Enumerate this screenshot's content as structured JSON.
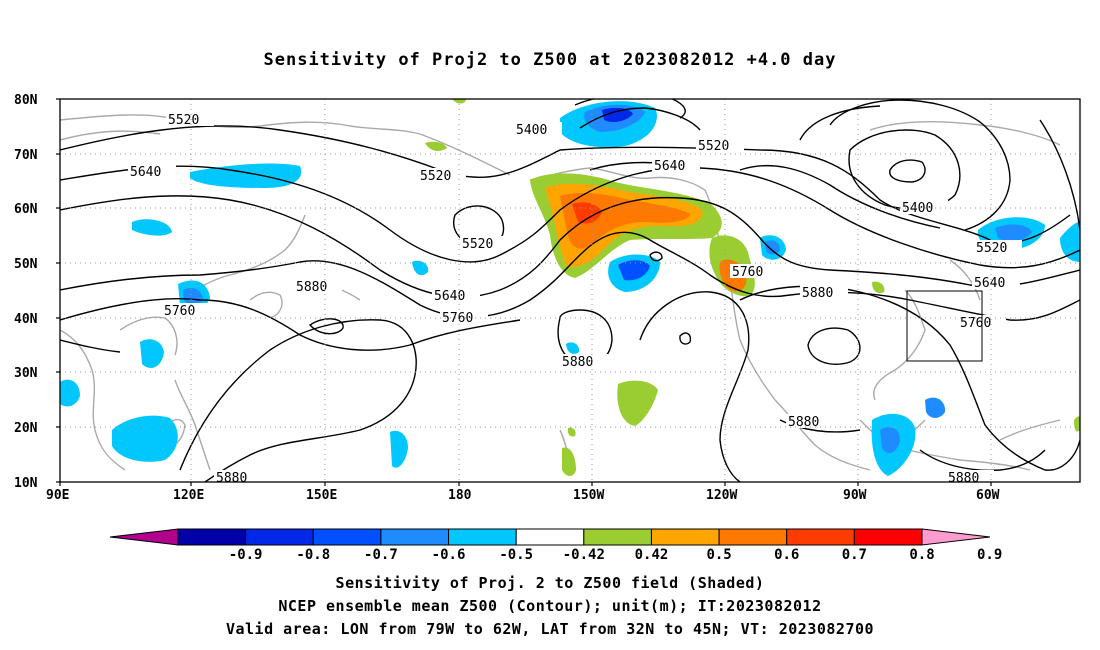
{
  "title": "Sensitivity of Proj2 to Z500 at 2023082012 +4.0 day",
  "captions": [
    "Sensitivity of Proj. 2 to Z500 field (Shaded)",
    "NCEP ensemble mean Z500 (Contour); unit(m); IT:2023082012",
    "Valid area: LON from 79W to 62W, LAT from 32N to 45N; VT: 2023082700"
  ],
  "chart_data": {
    "type": "map",
    "lon_range": [
      "90E",
      "50W"
    ],
    "lat_range": [
      "10N",
      "80N"
    ],
    "grid": true,
    "lat_labels": [
      "80N",
      "70N",
      "60N",
      "50N",
      "40N",
      "30N",
      "20N",
      "10N"
    ],
    "lon_labels": [
      "90E",
      "120E",
      "150E",
      "180",
      "150W",
      "120W",
      "90W",
      "60W"
    ],
    "contour_labels": [
      "5520",
      "5640",
      "5400",
      "5520",
      "5640",
      "5520",
      "5520",
      "5400",
      "5520",
      "5640",
      "5760",
      "5880",
      "5760",
      "5640",
      "5760",
      "5760",
      "5880",
      "5880",
      "5880",
      "5880",
      "5880"
    ],
    "colorbar": {
      "ticks": [
        "-0.9",
        "-0.8",
        "-0.7",
        "-0.6",
        "-0.5",
        "-0.42",
        "0.42",
        "0.5",
        "0.6",
        "0.7",
        "0.8",
        "0.9"
      ],
      "colors": [
        "#b0008c",
        "#0000a8",
        "#0028e6",
        "#0050ff",
        "#1e8cff",
        "#00c8ff",
        "#ffffff",
        "#9acd32",
        "#ffa500",
        "#ff7800",
        "#ff3c00",
        "#ff0000",
        "#ff9ccf"
      ]
    },
    "valid_area": {
      "lon": [
        "79W",
        "62W"
      ],
      "lat": [
        "32N",
        "45N"
      ]
    }
  }
}
